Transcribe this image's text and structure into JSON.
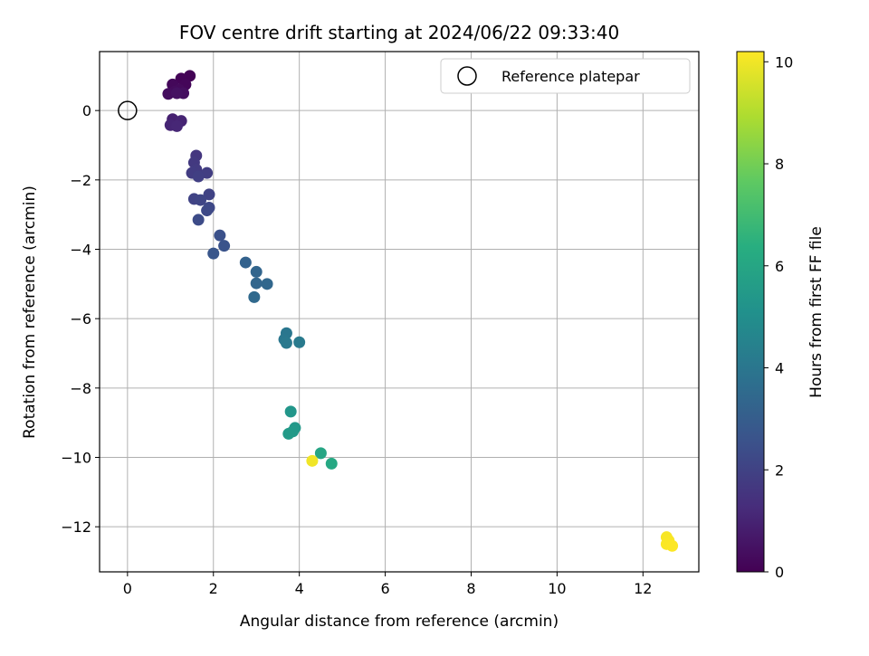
{
  "chart_data": {
    "type": "scatter",
    "title": "FOV centre drift starting at 2024/06/22 09:33:40",
    "xlabel": "Angular distance from reference (arcmin)",
    "ylabel": "Rotation from reference (arcmin)",
    "xlim": [
      -0.65,
      13.3
    ],
    "ylim": [
      -13.3,
      1.7
    ],
    "xticks": [
      0,
      2,
      4,
      6,
      8,
      10,
      12
    ],
    "yticks": [
      0,
      -2,
      -4,
      -6,
      -8,
      -10,
      -12
    ],
    "xtick_labels": [
      "0",
      "2",
      "4",
      "6",
      "8",
      "10",
      "12"
    ],
    "ytick_labels": [
      "0",
      "−2",
      "−4",
      "−6",
      "−8",
      "−10",
      "−12"
    ],
    "grid": true,
    "legend": {
      "label": "Reference platepar",
      "placement": "top-right"
    },
    "reference_point": {
      "x": 0,
      "y": 0
    },
    "colorbar": {
      "label": "Hours from first FF file",
      "colormap": "viridis",
      "range": [
        0,
        10.2
      ],
      "ticks": [
        0,
        2,
        4,
        6,
        8,
        10
      ],
      "tick_labels": [
        "0",
        "2",
        "4",
        "6",
        "8",
        "10"
      ]
    },
    "points": [
      {
        "x": 1.45,
        "y": 1.0,
        "c": 0.05
      },
      {
        "x": 1.25,
        "y": 0.92,
        "c": 0.1
      },
      {
        "x": 1.35,
        "y": 0.75,
        "c": 0.15
      },
      {
        "x": 1.05,
        "y": 0.75,
        "c": 0.2
      },
      {
        "x": 1.2,
        "y": 0.6,
        "c": 0.25
      },
      {
        "x": 1.1,
        "y": 0.55,
        "c": 0.3
      },
      {
        "x": 0.95,
        "y": 0.48,
        "c": 0.35
      },
      {
        "x": 1.3,
        "y": 0.5,
        "c": 0.4
      },
      {
        "x": 1.15,
        "y": 0.5,
        "c": 0.45
      },
      {
        "x": 1.05,
        "y": -0.25,
        "c": 0.9
      },
      {
        "x": 1.25,
        "y": -0.3,
        "c": 1.0
      },
      {
        "x": 1.0,
        "y": -0.42,
        "c": 1.05
      },
      {
        "x": 1.15,
        "y": -0.45,
        "c": 1.1
      },
      {
        "x": 1.6,
        "y": -1.3,
        "c": 1.6
      },
      {
        "x": 1.55,
        "y": -1.5,
        "c": 1.7
      },
      {
        "x": 1.6,
        "y": -1.7,
        "c": 1.75
      },
      {
        "x": 1.5,
        "y": -1.8,
        "c": 1.8
      },
      {
        "x": 1.85,
        "y": -1.8,
        "c": 1.85
      },
      {
        "x": 1.65,
        "y": -1.9,
        "c": 1.9
      },
      {
        "x": 1.9,
        "y": -2.42,
        "c": 2.0
      },
      {
        "x": 1.55,
        "y": -2.55,
        "c": 2.05
      },
      {
        "x": 1.7,
        "y": -2.58,
        "c": 2.1
      },
      {
        "x": 1.9,
        "y": -2.8,
        "c": 2.2
      },
      {
        "x": 1.85,
        "y": -2.88,
        "c": 2.25
      },
      {
        "x": 1.65,
        "y": -3.15,
        "c": 2.3
      },
      {
        "x": 2.15,
        "y": -3.6,
        "c": 2.5
      },
      {
        "x": 2.25,
        "y": -3.9,
        "c": 2.6
      },
      {
        "x": 2.0,
        "y": -4.12,
        "c": 2.7
      },
      {
        "x": 2.75,
        "y": -4.38,
        "c": 3.2
      },
      {
        "x": 3.0,
        "y": -4.65,
        "c": 3.3
      },
      {
        "x": 3.0,
        "y": -4.98,
        "c": 3.35
      },
      {
        "x": 3.25,
        "y": -5.0,
        "c": 3.4
      },
      {
        "x": 2.95,
        "y": -5.38,
        "c": 3.45
      },
      {
        "x": 3.7,
        "y": -6.42,
        "c": 4.0
      },
      {
        "x": 3.65,
        "y": -6.6,
        "c": 4.05
      },
      {
        "x": 3.7,
        "y": -6.7,
        "c": 4.1
      },
      {
        "x": 4.0,
        "y": -6.68,
        "c": 4.15
      },
      {
        "x": 3.8,
        "y": -8.68,
        "c": 5.3
      },
      {
        "x": 3.9,
        "y": -9.15,
        "c": 5.4
      },
      {
        "x": 3.85,
        "y": -9.25,
        "c": 5.45
      },
      {
        "x": 3.75,
        "y": -9.32,
        "c": 5.5
      },
      {
        "x": 4.5,
        "y": -9.88,
        "c": 6.0
      },
      {
        "x": 4.75,
        "y": -10.18,
        "c": 6.1
      },
      {
        "x": 4.3,
        "y": -10.1,
        "c": 10.0
      },
      {
        "x": 12.55,
        "y": -12.3,
        "c": 10.1
      },
      {
        "x": 12.6,
        "y": -12.4,
        "c": 10.12
      },
      {
        "x": 12.55,
        "y": -12.5,
        "c": 10.15
      },
      {
        "x": 12.68,
        "y": -12.55,
        "c": 10.18
      }
    ]
  }
}
